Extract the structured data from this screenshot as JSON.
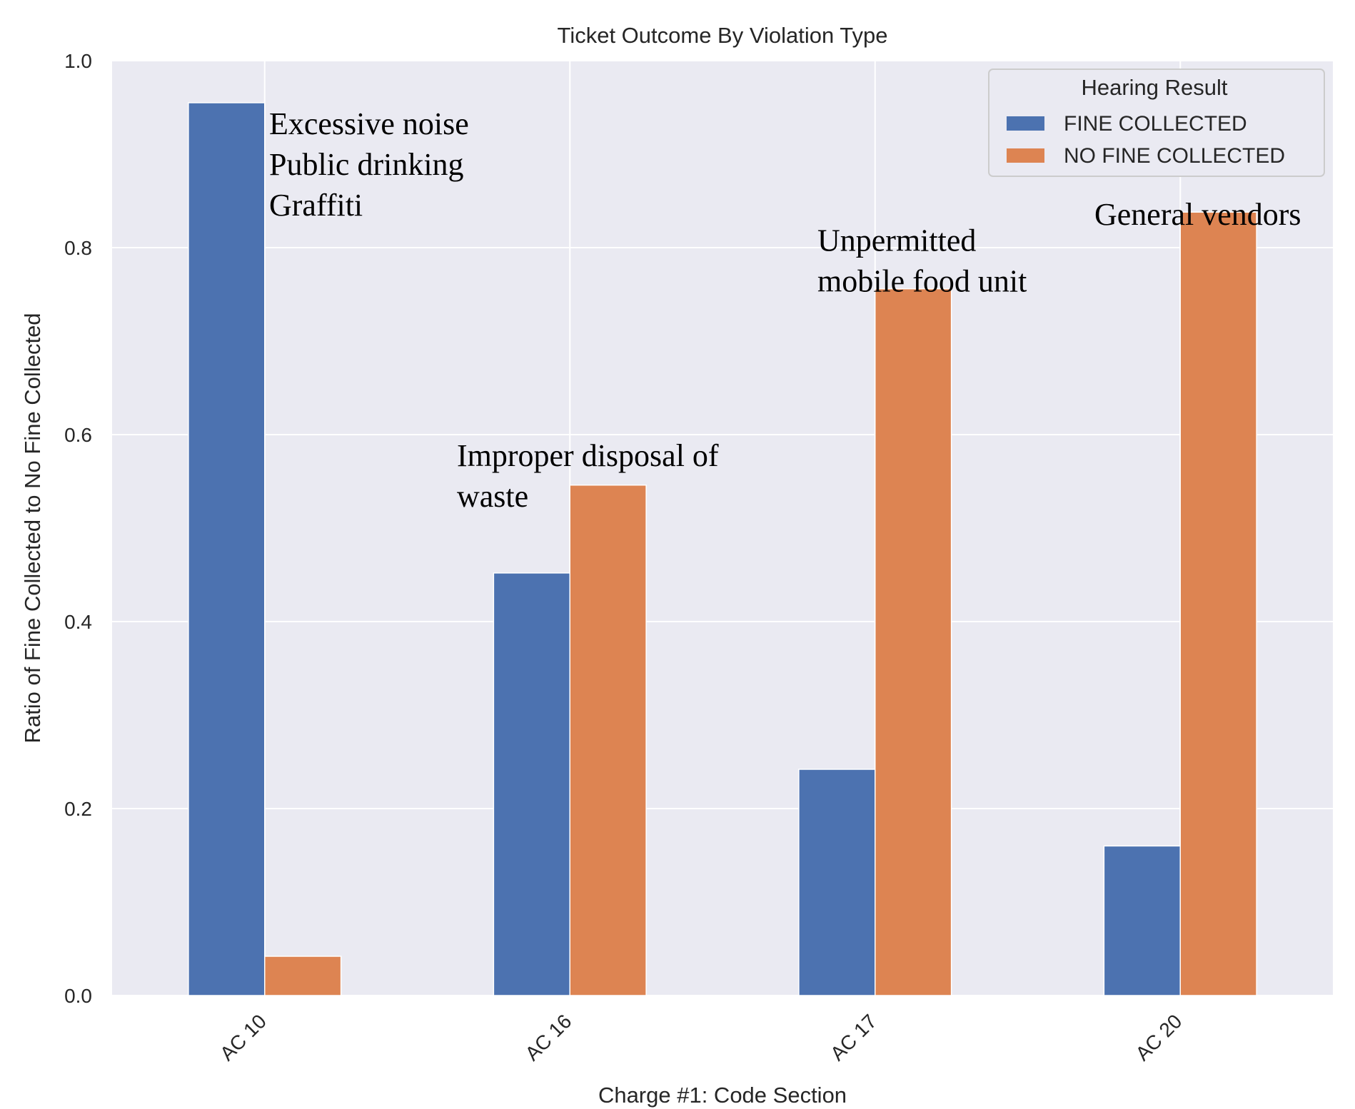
{
  "chart_data": {
    "type": "bar",
    "title": "Ticket Outcome By Violation Type",
    "xlabel": "Charge #1: Code Section",
    "ylabel": "Ratio of Fine Collected to No Fine Collected",
    "ylim": [
      0,
      1.0
    ],
    "yticks": [
      "0.0",
      "0.2",
      "0.4",
      "0.6",
      "0.8",
      "1.0"
    ],
    "grid": true,
    "categories": [
      "AC 10",
      "AC 16",
      "AC 17",
      "AC 20"
    ],
    "series": [
      {
        "name": "FINE COLLECTED",
        "color": "#4c72b0",
        "values": [
          0.955,
          0.452,
          0.242,
          0.16
        ]
      },
      {
        "name": "NO FINE COLLECTED",
        "color": "#dd8452",
        "values": [
          0.042,
          0.546,
          0.756,
          0.838
        ]
      }
    ],
    "legend": {
      "title": "Hearing Result",
      "position": "top-right"
    },
    "annotations": [
      {
        "category": "AC 10",
        "lines": [
          "Excessive noise",
          "Public drinking",
          "Graffiti"
        ]
      },
      {
        "category": "AC 16",
        "lines": [
          "Improper disposal of",
          "waste"
        ]
      },
      {
        "category": "AC 17",
        "lines": [
          "Unpermitted",
          "mobile food unit"
        ]
      },
      {
        "category": "AC 20",
        "lines": [
          "General vendors"
        ]
      }
    ]
  }
}
